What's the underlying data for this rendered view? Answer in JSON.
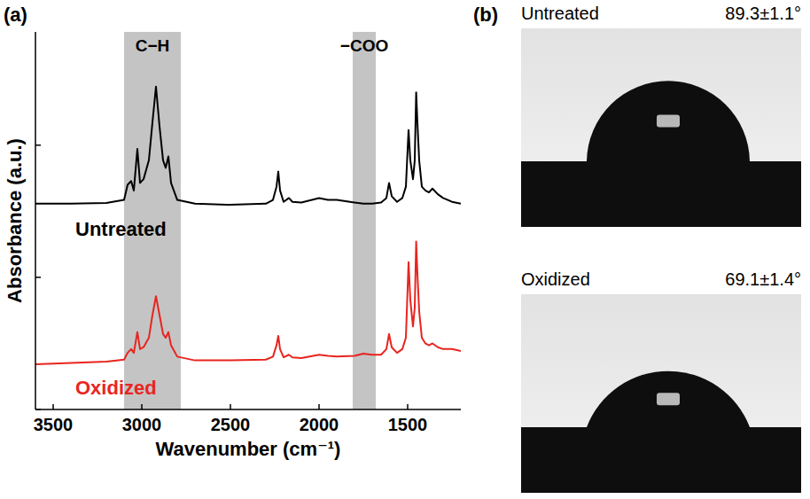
{
  "chart_data": {
    "type": "line",
    "panel_label": "(a)",
    "x_label": "Wavenumber (cm⁻¹)",
    "y_label": "Absorbance (a.u.)",
    "xlim": [
      3600,
      1200
    ],
    "xticks": [
      3500,
      3000,
      2500,
      2000,
      1500
    ],
    "ylim": [
      0,
      10
    ],
    "yticks": [
      0,
      3.5,
      7
    ],
    "tick_labels": "x",
    "grid": false,
    "bands": [
      {
        "label": "C−H",
        "from": 3100,
        "to": 2780
      },
      {
        "label": "−COO",
        "from": 1810,
        "to": 1680
      }
    ],
    "x": [
      3600,
      3400,
      3200,
      3100,
      3080,
      3060,
      3045,
      3025,
      3010,
      2990,
      2960,
      2940,
      2920,
      2900,
      2880,
      2865,
      2850,
      2835,
      2800,
      2700,
      2500,
      2300,
      2260,
      2240,
      2230,
      2220,
      2200,
      2170,
      2150,
      2100,
      2000,
      1950,
      1900,
      1800,
      1750,
      1700,
      1650,
      1620,
      1605,
      1590,
      1560,
      1530,
      1510,
      1495,
      1485,
      1470,
      1460,
      1452,
      1445,
      1435,
      1420,
      1400,
      1380,
      1360,
      1330,
      1300,
      1250,
      1200
    ],
    "series": [
      {
        "name": "Untreated",
        "color": "#000000",
        "values": [
          5.45,
          5.45,
          5.47,
          5.55,
          5.95,
          6.05,
          5.8,
          6.9,
          6.0,
          6.1,
          6.6,
          7.6,
          8.55,
          7.5,
          6.6,
          6.4,
          6.7,
          6.0,
          5.55,
          5.45,
          5.42,
          5.45,
          5.55,
          5.9,
          6.3,
          5.8,
          5.5,
          5.6,
          5.5,
          5.48,
          5.6,
          5.55,
          5.55,
          5.48,
          5.45,
          5.45,
          5.48,
          5.6,
          6.0,
          5.65,
          5.5,
          5.6,
          5.9,
          7.4,
          6.6,
          6.1,
          6.6,
          8.4,
          7.6,
          6.6,
          5.9,
          5.8,
          5.75,
          5.85,
          5.7,
          5.6,
          5.5,
          5.45
        ]
      },
      {
        "name": "Oxidized",
        "color": "#e8251f",
        "values": [
          1.2,
          1.23,
          1.27,
          1.32,
          1.5,
          1.6,
          1.5,
          2.05,
          1.6,
          1.65,
          1.9,
          2.5,
          3.0,
          2.5,
          2.0,
          1.9,
          2.05,
          1.7,
          1.4,
          1.3,
          1.3,
          1.32,
          1.4,
          1.7,
          1.95,
          1.6,
          1.38,
          1.45,
          1.38,
          1.36,
          1.45,
          1.42,
          1.4,
          1.42,
          1.48,
          1.45,
          1.45,
          1.6,
          2.0,
          1.65,
          1.5,
          1.6,
          1.9,
          3.9,
          2.9,
          2.2,
          2.7,
          4.45,
          3.6,
          2.6,
          1.9,
          1.75,
          1.7,
          1.75,
          1.65,
          1.6,
          1.6,
          1.55
        ]
      }
    ]
  },
  "contact_angle": {
    "panel_label": "(b)",
    "images": [
      {
        "label": "Untreated",
        "angle": 89.3,
        "angle_label": "89.3±1.1°"
      },
      {
        "label": "Oxidized",
        "angle": 69.1,
        "angle_label": "69.1±1.4°"
      }
    ]
  }
}
